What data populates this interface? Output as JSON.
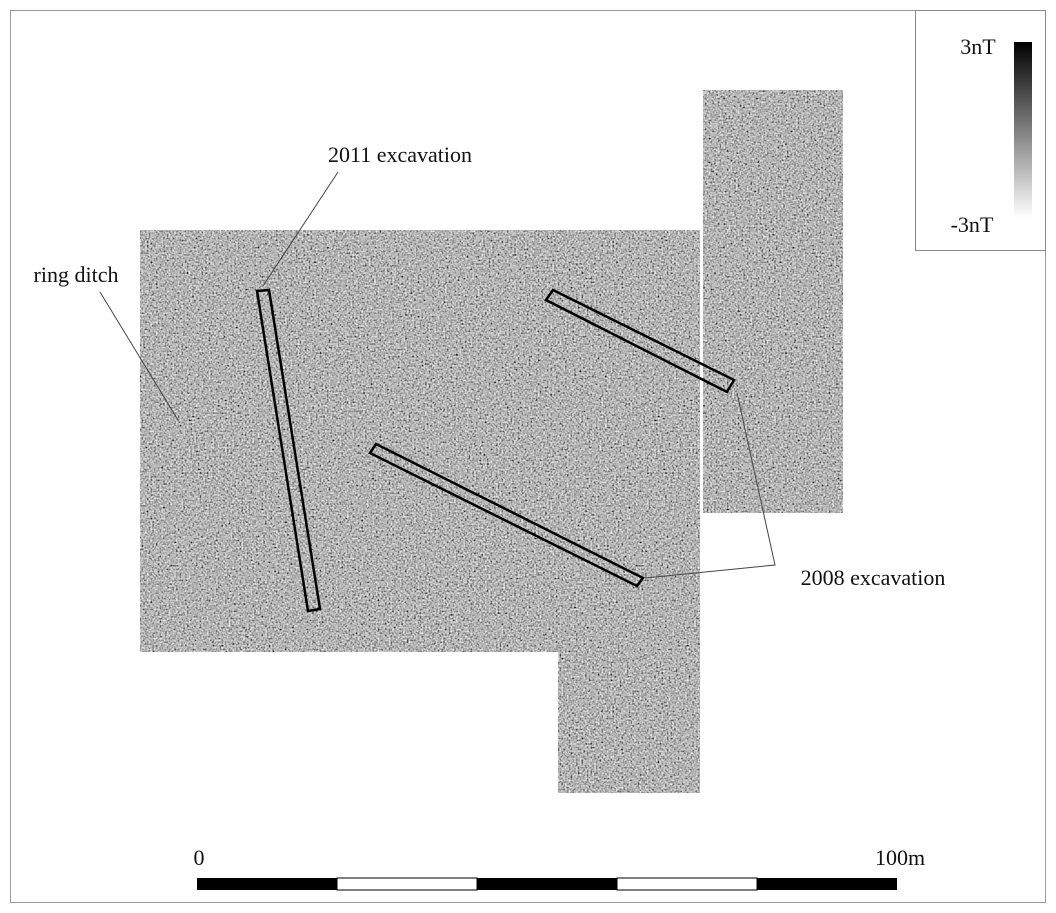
{
  "annotations": {
    "excavation_2011": "2011 excavation",
    "ring_ditch": "ring ditch",
    "excavation_2008": "2008 excavation"
  },
  "legend": {
    "max": "3nT",
    "min": "-3nT"
  },
  "scale_bar": {
    "start": "0",
    "end": "100m"
  }
}
